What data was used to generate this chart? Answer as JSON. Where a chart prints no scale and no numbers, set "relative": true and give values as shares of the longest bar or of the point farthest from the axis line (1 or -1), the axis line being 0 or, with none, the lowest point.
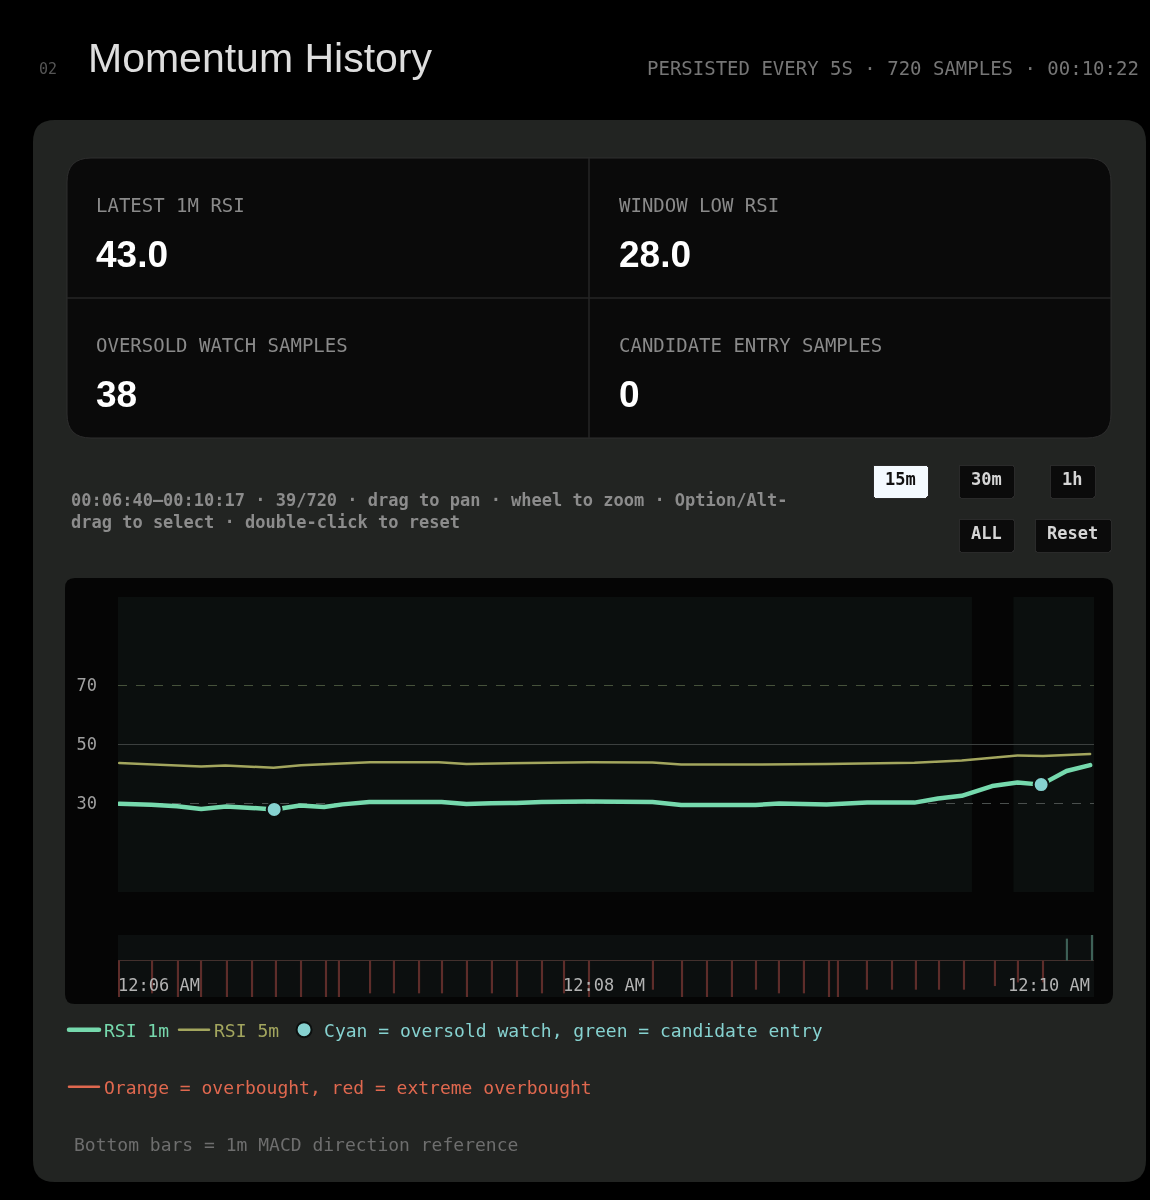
{
  "chart_data": [
    {
      "type": "other",
      "title": "Momentum History",
      "subtitle": "PERSISTED EVERY 5S · 720 SAMPLES · 00:10:22",
      "annotations": [
        "02",
        "LATEST 1M RSI",
        "43.0",
        "WINDOW LOW RSI",
        "28.0",
        "OVERSOLD WATCH SAMPLES",
        "38",
        "CANDIDATE ENTRY SAMPLES",
        "0"
      ]
    },
    {
      "type": "line",
      "subtitle": "00:06:40–00:10:17 · 39/720 · drag to pan · wheel to zoom · Option/Alt-drag to select · double-click to reset",
      "annotations": [
        "15m",
        "30m",
        "1h",
        "ALL",
        "Reset"
      ],
      "xlim": [
        0.09693,
        0.17004
      ],
      "ylim": [
        0,
        100
      ],
      "yticks": [
        30,
        50,
        70
      ],
      "tick_labels": "y",
      "legend": "bottom",
      "ref_lines": [
        {
          "axis": "y",
          "value": 70,
          "color": "#46523b",
          "line_style": "dashed"
        },
        {
          "axis": "y",
          "value": 50,
          "color": "#3c403f",
          "line_style": "solid"
        },
        {
          "axis": "y",
          "value": 30,
          "color": "#4a4f4d",
          "line_style": "dashed"
        }
      ],
      "bands": [
        {
          "axis": "x",
          "from": 0.1609,
          "to": 0.164,
          "color": "#050505"
        }
      ],
      "series": [
        {
          "name": "RSI 1m",
          "color": "#76d9ad",
          "x": [
            0.09702,
            0.09942,
            0.10136,
            0.10316,
            0.10504,
            0.10693,
            0.10863,
            0.11056,
            0.11237,
            0.11374,
            0.11575,
            0.1176,
            0.11947,
            0.12117,
            0.12303,
            0.12488,
            0.12676,
            0.12865,
            0.13032,
            0.13218,
            0.13697,
            0.13912,
            0.14469,
            0.14646,
            0.15001,
            0.15305,
            0.15659,
            0.15836,
            0.16013,
            0.16241,
            0.16431,
            0.16608,
            0.16798,
            0.16975
          ],
          "values": [
            29.9,
            29.6,
            29.1,
            28.1,
            29.0,
            28.5,
            28.0,
            29.3,
            28.8,
            29.7,
            30.5,
            30.5,
            30.5,
            30.5,
            29.8,
            30.1,
            30.2,
            30.5,
            30.6,
            30.7,
            30.5,
            29.5,
            29.5,
            30.0,
            29.7,
            30.3,
            30.3,
            31.7,
            32.6,
            35.9,
            37.1,
            36.4,
            41.0,
            43.0
          ]
        },
        {
          "name": "RSI 5m",
          "color": "#a3a65e",
          "x": [
            0.09702,
            0.10316,
            0.10497,
            0.10858,
            0.11064,
            0.11581,
            0.12096,
            0.12303,
            0.13228,
            0.13697,
            0.13912,
            0.14469,
            0.15001,
            0.15659,
            0.16013,
            0.16431,
            0.16622,
            0.16975
          ],
          "values": [
            43.7,
            42.5,
            42.9,
            42.1,
            43.0,
            44.0,
            44.0,
            43.4,
            44.0,
            43.9,
            43.2,
            43.2,
            43.4,
            43.8,
            44.6,
            46.3,
            46.1,
            46.8
          ]
        },
        {
          "name": "Cyan = oversold watch, green = candidate entry",
          "type": "scatter",
          "marker": "circle",
          "color": "#86d2d0",
          "x": [
            0.10863,
            0.16608
          ],
          "values": [
            28.0,
            36.4
          ]
        },
        {
          "name": "Orange = overbought, red = extreme overbought",
          "type": "line",
          "color": "#e0684f"
        }
      ]
    },
    {
      "type": "bar",
      "relative": true,
      "tick_labels": "x",
      "annotations": [
        "Bottom bars = 1m MACD direction reference"
      ],
      "xlim": [
        0.09693,
        0.17004
      ],
      "xticks": [
        {
          "value": 0.1,
          "label": "12:06 AM"
        },
        {
          "value": 0.13333,
          "label": "12:08 AM"
        },
        {
          "value": 0.16667,
          "label": "12:10 AM"
        }
      ],
      "x": [
        0.097,
        0.09948,
        0.10142,
        0.10315,
        0.10509,
        0.10697,
        0.10876,
        0.11064,
        0.11251,
        0.11348,
        0.11581,
        0.1176,
        0.11948,
        0.1212,
        0.12307,
        0.12494,
        0.12682,
        0.12869,
        0.13034,
        0.13221,
        0.137,
        0.13918,
        0.14105,
        0.14292,
        0.14472,
        0.14644,
        0.14831,
        0.15019,
        0.15086,
        0.15303,
        0.15491,
        0.1567,
        0.15843,
        0.1603,
        0.16262,
        0.16434,
        0.16622,
        0.16801,
        0.16989
      ],
      "values": [
        -1,
        -0.9,
        -1,
        -1,
        -1,
        -1,
        -1,
        -1,
        -1,
        -1,
        -0.9,
        -0.9,
        -0.9,
        -0.9,
        -1,
        -0.9,
        -1,
        -0.9,
        -0.9,
        -1,
        -0.8,
        -1,
        -1,
        -1,
        -0.8,
        -0.9,
        -0.9,
        -1,
        -1,
        -0.8,
        -0.8,
        -0.8,
        -0.8,
        -0.8,
        -0.7,
        -0.6,
        -0.6,
        0.6,
        0.7
      ],
      "colors": [
        "#5e2d2a",
        "#5e2d2a",
        "#5e2d2a",
        "#5e2d2a",
        "#5e2d2a",
        "#5e2d2a",
        "#5e2d2a",
        "#5e2d2a",
        "#5e2d2a",
        "#5e2d2a",
        "#5e2d2a",
        "#5e2d2a",
        "#5e2d2a",
        "#5e2d2a",
        "#5e2d2a",
        "#5e2d2a",
        "#5e2d2a",
        "#5e2d2a",
        "#5e2d2a",
        "#5e2d2a",
        "#5e2d2a",
        "#5e2d2a",
        "#5e2d2a",
        "#5e2d2a",
        "#5e2d2a",
        "#5e2d2a",
        "#5e2d2a",
        "#5e2d2a",
        "#5e2d2a",
        "#5e2d2a",
        "#5e2d2a",
        "#5e2d2a",
        "#5e2d2a",
        "#5e2d2a",
        "#5e2d2a",
        "#5e2d2a",
        "#5e2d2a",
        "#3e6157",
        "#3e6157"
      ]
    }
  ]
}
